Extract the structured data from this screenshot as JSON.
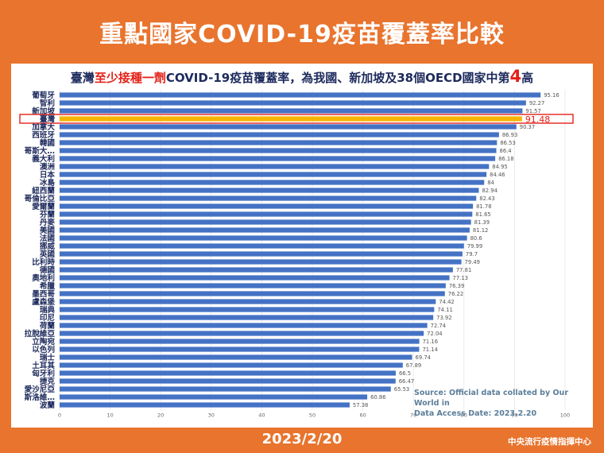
{
  "title": "重點國家COVID-19疫苗覆蓋率比較",
  "subtitle": {
    "part1": "臺灣",
    "part2": "至少接種一劑",
    "part3": "COVID-19疫苗覆蓋率，為我國、新加坡及38個OECD國家中第",
    "part4": "4",
    "part5": "高"
  },
  "source_line1": "Source: Official data collated by Our World in",
  "source_line2": "Data  Access Date: 2023.2.20",
  "footer_date": "2023/2/20",
  "footer_org": "中央流行疫情指揮中心",
  "colors": {
    "bar": "#4472c4",
    "highlight_bar": "#f7b500",
    "highlight_box": "#e32119",
    "frame": "#e8742e"
  },
  "chart_data": {
    "type": "bar",
    "orientation": "horizontal",
    "highlight": "臺灣",
    "categories": [
      "葡萄牙",
      "智利",
      "新加坡",
      "臺灣",
      "加拿大",
      "西班牙",
      "韓國",
      "哥斯大…",
      "義大利",
      "澳洲",
      "日本",
      "冰島",
      "紐西蘭",
      "哥倫比亞",
      "愛爾蘭",
      "芬蘭",
      "丹麥",
      "美國",
      "法國",
      "挪威",
      "英國",
      "比利時",
      "德國",
      "奧地利",
      "希臘",
      "墨西哥",
      "盧森堡",
      "瑞典",
      "印尼",
      "荷蘭",
      "拉脫維亞",
      "立陶宛",
      "以色列",
      "瑞士",
      "土耳其",
      "匈牙利",
      "捷克",
      "愛沙尼亞",
      "斯洛維…",
      "波蘭"
    ],
    "values": [
      95.16,
      92.27,
      91.57,
      91.48,
      90.37,
      86.93,
      86.53,
      86.4,
      86.18,
      84.95,
      84.46,
      84,
      82.94,
      82.43,
      81.78,
      81.65,
      81.39,
      81.12,
      80.6,
      79.99,
      79.7,
      79.49,
      77.81,
      77.13,
      76.39,
      76.22,
      74.42,
      74.11,
      73.92,
      72.74,
      72.04,
      71.16,
      71.14,
      69.74,
      67.89,
      66.5,
      66.47,
      65.53,
      60.86,
      57.38
    ],
    "xlim": [
      0,
      100
    ],
    "xticks": [
      0,
      10,
      20,
      30,
      40,
      50,
      60,
      70,
      80,
      90,
      100
    ]
  }
}
